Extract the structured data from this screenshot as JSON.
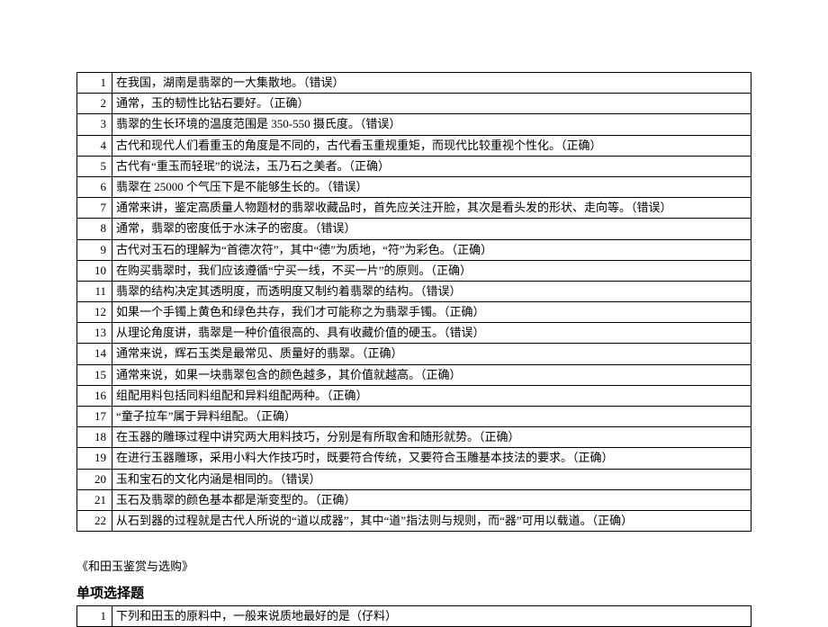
{
  "table1": {
    "rows": [
      {
        "n": "1",
        "t": "在我国，湖南是翡翠的一大集散地。（错误）"
      },
      {
        "n": "2",
        "t": "通常，玉的韧性比钻石要好。（正确）"
      },
      {
        "n": "3",
        "t": "翡翠的生长环境的温度范围是 350-550 摄氏度。（错误）"
      },
      {
        "n": "4",
        "t": "古代和现代人们看重玉的角度是不同的，古代看玉重规重矩，而现代比较重视个性化。（正确）"
      },
      {
        "n": "5",
        "t": "古代有“重玉而轻珉”的说法，玉乃石之美者。（正确）"
      },
      {
        "n": "6",
        "t": "翡翠在 25000 个气压下是不能够生长的。（错误）"
      },
      {
        "n": "7",
        "t": "通常来讲，鉴定高质量人物题材的翡翠收藏品时，首先应关注开脸，其次是看头发的形状、走向等。（错误）"
      },
      {
        "n": "8",
        "t": "通常，翡翠的密度低于水沫子的密度。（错误）"
      },
      {
        "n": "9",
        "t": "古代对玉石的理解为“首德次符”，其中“德”为质地，“符”为彩色。（正确）"
      },
      {
        "n": "10",
        "t": "在购买翡翠时，我们应该遵循“宁买一线，不买一片”的原则。（正确）"
      },
      {
        "n": "11",
        "t": "翡翠的结构决定其透明度，而透明度又制约着翡翠的结构。（错误）"
      },
      {
        "n": "12",
        "t": "如果一个手镯上黄色和绿色共存，我们才可能称之为翡翠手镯。（正确）"
      },
      {
        "n": "13",
        "t": "从理论角度讲，翡翠是一种价值很高的、具有收藏价值的硬玉。（错误）"
      },
      {
        "n": "14",
        "t": "通常来说，辉石玉类是最常见、质量好的翡翠。（正确）"
      },
      {
        "n": "15",
        "t": "通常来说，如果一块翡翠包含的颜色越多，其价值就越高。（正确）"
      },
      {
        "n": "16",
        "t": "组配用料包括同料组配和异料组配两种。（正确）"
      },
      {
        "n": "17",
        "t": "“童子拉车”属于异料组配。（正确）"
      },
      {
        "n": "18",
        "t": "在玉器的雕琢过程中讲究两大用料技巧，分别是有所取舍和随形就势。（正确）"
      },
      {
        "n": "19",
        "t": "在进行玉器雕琢，采用小料大作技巧时，既要符合传统，又要符合玉雕基本技法的要求。（正确）"
      },
      {
        "n": "20",
        "t": "玉和宝石的文化内涵是相同的。（错误）"
      },
      {
        "n": "21",
        "t": "玉石及翡翠的颜色基本都是渐变型的。（正确）"
      },
      {
        "n": "22",
        "t": "从石到器的过程就是古代人所说的“道以成器”，其中“道”指法则与规则，而“器”可用以载道。（正确）"
      }
    ]
  },
  "section2": {
    "title": "《和田玉鉴赏与选购》",
    "heading": "单项选择题",
    "rows": [
      {
        "n": "1",
        "t": "下列和田玉的原料中，一般来说质地最好的是（仔料）"
      }
    ]
  }
}
